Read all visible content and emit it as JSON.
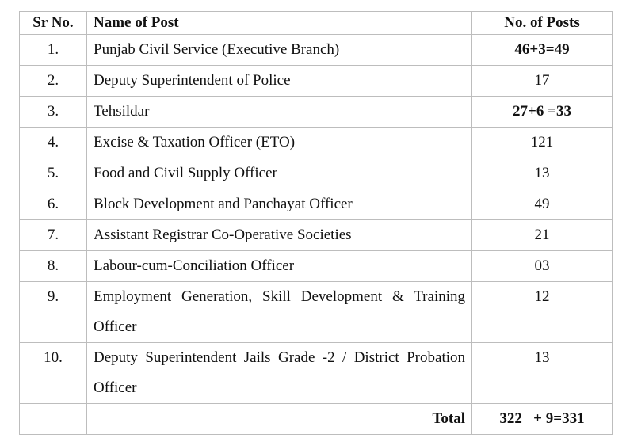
{
  "headers": {
    "sr": "Sr No.",
    "name": "Name of Post",
    "posts": "No. of Posts"
  },
  "rows": [
    {
      "sr": "1.",
      "name": "Punjab Civil Service (Executive Branch)",
      "posts": "46+3=49",
      "bold": true
    },
    {
      "sr": "2.",
      "name": "Deputy Superintendent of Police",
      "posts": "17"
    },
    {
      "sr": "3.",
      "name": "Tehsildar",
      "posts": "27+6 =33",
      "bold": true
    },
    {
      "sr": "4.",
      "name": "Excise & Taxation Officer (ETO)",
      "posts": "121"
    },
    {
      "sr": "5.",
      "name": "Food and Civil Supply Officer",
      "posts": "13"
    },
    {
      "sr": "6.",
      "name": "Block Development  and  Panchayat Officer",
      "posts": "49"
    },
    {
      "sr": "7.",
      "name": "Assistant Registrar Co-Operative Societies",
      "posts": "21"
    },
    {
      "sr": "8.",
      "name": "Labour-cum-Conciliation Officer",
      "posts": "03"
    },
    {
      "sr": "9.",
      "name": "Employment Generation, Skill Development & Training Officer",
      "posts": "12"
    },
    {
      "sr": "10.",
      "name": "Deputy Superintendent  Jails Grade -2 / District Probation Officer",
      "posts": "13"
    }
  ],
  "total": {
    "label": "Total",
    "value": "322   + 9=331"
  }
}
